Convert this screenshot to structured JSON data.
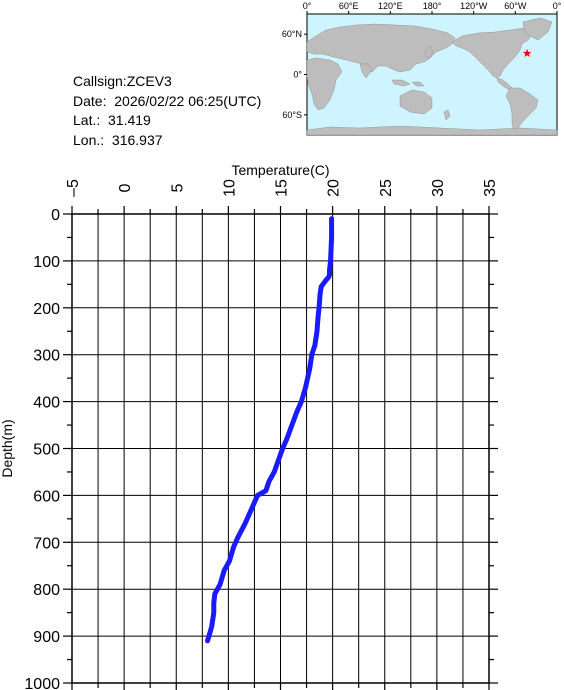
{
  "station": {
    "callsign": "Callsign:ZCEV3",
    "date": "Date:  2026/02/22 06:25(UTC)",
    "lat": "Lat.:  31.419",
    "lon": "Lon.:  316.937"
  },
  "map": {
    "top_labels": [
      "0°",
      "60°E",
      "120°E",
      "180°",
      "120°W",
      "60°W",
      "0°"
    ],
    "left_labels": [
      "60°N",
      "0°",
      "60°S"
    ],
    "ocean_color": "#cdf4ff",
    "land_color": "#bdbdbd",
    "marker": {
      "lat": 31.419,
      "lon": 316.937,
      "color": "#ff0000",
      "icon": "red-star-icon"
    }
  },
  "chart_data": {
    "type": "line",
    "xlabel": "Temperature(C)",
    "ylabel": "Depth(m)",
    "xlim": [
      -5,
      35
    ],
    "ylim": [
      1000,
      0
    ],
    "x_ticks": [
      -5,
      0,
      5,
      10,
      15,
      20,
      25,
      30,
      35
    ],
    "y_ticks": [
      0,
      100,
      200,
      300,
      400,
      500,
      600,
      700,
      800,
      900,
      1000
    ],
    "x_axis_position": "top",
    "y_reversed": true,
    "grid": true,
    "line_color": "#1a1aff",
    "series": [
      {
        "x": [
          19.9,
          19.9,
          19.8,
          19.7,
          19.7,
          19.6,
          19.4,
          18.9,
          18.8,
          18.7,
          18.6,
          18.5,
          18.3,
          18.0,
          17.8,
          17.4,
          17.0,
          16.6,
          16.1,
          15.6,
          15.2,
          14.4,
          13.9,
          13.6,
          12.8,
          12.2,
          11.6,
          10.9,
          10.5,
          10.1,
          9.6,
          9.2,
          8.7,
          8.6,
          8.6,
          8.4,
          8.0
        ],
        "y": [
          10,
          50,
          100,
          120,
          130,
          135,
          140,
          155,
          170,
          200,
          220,
          250,
          280,
          300,
          330,
          370,
          400,
          420,
          450,
          480,
          500,
          550,
          570,
          590,
          600,
          630,
          660,
          690,
          710,
          740,
          760,
          790,
          810,
          830,
          850,
          880,
          910
        ]
      }
    ]
  }
}
